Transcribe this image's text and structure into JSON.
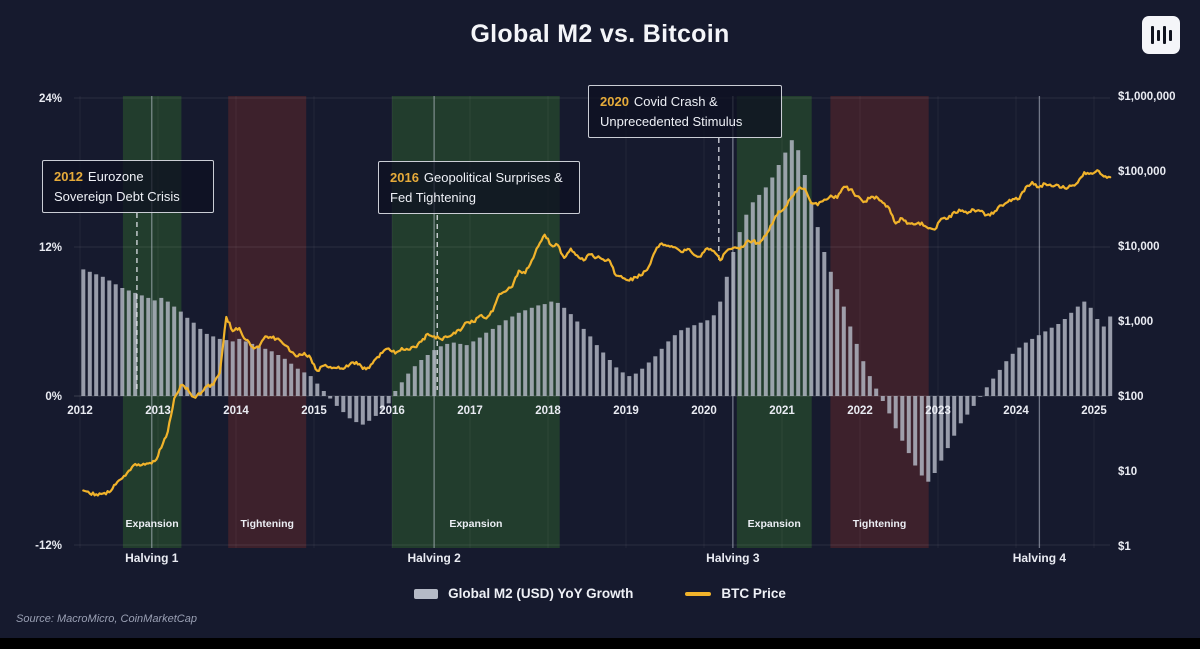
{
  "page": {
    "title": "Global M2 vs. Bitcoin",
    "source": "Source: MacroMicro, CoinMarketCap",
    "logo": "macromicro-bars-icon"
  },
  "colors": {
    "background": "#161a2e",
    "bars": "#b5bac6",
    "btc_line": "#f1b32b",
    "expansion_zone": "#24402e",
    "tightening_zone": "#41222c",
    "accent_year": "#e6ab3a"
  },
  "legend": [
    {
      "label": "Global M2 (USD) YoY Growth",
      "swatch": "bar",
      "color": "#b5bac6"
    },
    {
      "label": "BTC Price",
      "swatch": "line",
      "color": "#f1b32b"
    }
  ],
  "annotations": [
    {
      "year": "2012",
      "text": "Eurozone Sovereign Debt Crisis",
      "date": 2012.73
    },
    {
      "year": "2016",
      "text": "Geopolitical Surprises & Fed Tightening",
      "date": 2016.58
    },
    {
      "year": "2020",
      "text": "Covid Crash & Unprecedented Stimulus",
      "date": 2020.19
    }
  ],
  "chart_data": {
    "type": "combo",
    "title": "Global M2 vs. Bitcoin",
    "x_start": 2012.0,
    "x_step_months": 1,
    "x_axis": {
      "tick_labels": [
        "2012",
        "2013",
        "2014",
        "2015",
        "2016",
        "2017",
        "2018",
        "2019",
        "2020",
        "2021",
        "2022",
        "2023",
        "2024",
        "2025"
      ]
    },
    "left_axis": {
      "range": [
        -12,
        24
      ],
      "ticks": [
        {
          "label": "24%",
          "value": 24
        },
        {
          "label": "12%",
          "value": 12
        },
        {
          "label": "0%",
          "value": 0
        },
        {
          "label": "-12%",
          "value": -12
        }
      ]
    },
    "right_axis": {
      "scale": "log",
      "range": [
        1,
        1000000
      ],
      "ticks": [
        {
          "label": "$1,000,000",
          "value": 1000000
        },
        {
          "label": "$100,000",
          "value": 100000
        },
        {
          "label": "$10,000",
          "value": 10000
        },
        {
          "label": "$1,000",
          "value": 1000
        },
        {
          "label": "$100",
          "value": 100
        },
        {
          "label": "$10",
          "value": 10
        },
        {
          "label": "$1",
          "value": 1
        }
      ]
    },
    "series": [
      {
        "name": "Global M2 (USD) YoY Growth",
        "type": "bar",
        "axis": "left",
        "unit": "%",
        "values": [
          10.2,
          10.0,
          9.8,
          9.6,
          9.3,
          9.0,
          8.7,
          8.5,
          8.3,
          8.1,
          7.9,
          7.7,
          7.9,
          7.6,
          7.2,
          6.8,
          6.3,
          5.9,
          5.4,
          5.0,
          4.8,
          4.6,
          4.5,
          4.4,
          4.6,
          4.4,
          4.2,
          4.0,
          3.8,
          3.6,
          3.3,
          3.0,
          2.6,
          2.2,
          1.9,
          1.6,
          1.0,
          0.4,
          -0.2,
          -0.8,
          -1.3,
          -1.8,
          -2.1,
          -2.3,
          -2.0,
          -1.6,
          -1.1,
          -0.6,
          0.4,
          1.1,
          1.8,
          2.4,
          2.9,
          3.3,
          3.7,
          4.0,
          4.2,
          4.3,
          4.2,
          4.1,
          4.4,
          4.7,
          5.1,
          5.4,
          5.7,
          6.1,
          6.4,
          6.7,
          6.9,
          7.1,
          7.3,
          7.4,
          7.6,
          7.5,
          7.1,
          6.6,
          6.0,
          5.4,
          4.8,
          4.1,
          3.5,
          2.9,
          2.3,
          1.9,
          1.6,
          1.8,
          2.2,
          2.7,
          3.2,
          3.8,
          4.4,
          4.9,
          5.3,
          5.5,
          5.7,
          5.9,
          6.1,
          6.5,
          7.6,
          9.6,
          11.6,
          13.2,
          14.6,
          15.6,
          16.2,
          16.8,
          17.6,
          18.6,
          19.6,
          20.6,
          19.8,
          17.8,
          15.6,
          13.6,
          11.6,
          10.0,
          8.6,
          7.2,
          5.6,
          4.2,
          2.8,
          1.6,
          0.6,
          -0.4,
          -1.4,
          -2.6,
          -3.6,
          -4.6,
          -5.6,
          -6.4,
          -6.9,
          -6.2,
          -5.2,
          -4.2,
          -3.2,
          -2.2,
          -1.5,
          -0.8,
          0.0,
          0.7,
          1.4,
          2.1,
          2.8,
          3.4,
          3.9,
          4.3,
          4.6,
          4.9,
          5.2,
          5.5,
          5.8,
          6.2,
          6.7,
          7.2,
          7.6,
          7.1,
          6.2,
          5.6,
          6.4
        ]
      },
      {
        "name": "BTC Price",
        "type": "line",
        "axis": "right",
        "unit": "USD",
        "values": [
          5.5,
          5.0,
          4.9,
          5.0,
          5.2,
          6.6,
          8.0,
          10.1,
          12.4,
          12.0,
          12.6,
          13.5,
          20.4,
          33.4,
          93,
          139,
          128,
          97,
          106,
          135,
          141,
          204,
          1130,
          732,
          806,
          562,
          454,
          447,
          623,
          597,
          583,
          477,
          387,
          338,
          376,
          320,
          217,
          254,
          244,
          236,
          230,
          263,
          284,
          230,
          236,
          314,
          377,
          430,
          369,
          437,
          416,
          449,
          531,
          673,
          625,
          574,
          610,
          701,
          742,
          964,
          970,
          1180,
          1080,
          1350,
          2290,
          2480,
          2870,
          4700,
          4340,
          6470,
          9920,
          14160,
          10220,
          10310,
          6940,
          9240,
          7500,
          6400,
          7730,
          7030,
          6620,
          6320,
          4020,
          3740,
          3460,
          3850,
          4100,
          5320,
          8560,
          10820,
          10080,
          9630,
          8310,
          9160,
          7560,
          7190,
          9350,
          8560,
          6440,
          8620,
          9450,
          9140,
          11350,
          11650,
          10780,
          13800,
          19700,
          29000,
          33110,
          45240,
          58800,
          57750,
          37330,
          35040,
          41500,
          47160,
          43790,
          61320,
          57010,
          46220,
          38480,
          43190,
          45540,
          37650,
          31790,
          19940,
          23290,
          20050,
          19430,
          20500,
          17160,
          16550,
          23130,
          23140,
          28480,
          29250,
          27220,
          30480,
          29230,
          25930,
          26960,
          34650,
          37710,
          42260,
          42580,
          61150,
          71330,
          60640,
          67490,
          62680,
          64620,
          58970,
          63330,
          70220,
          96450,
          93430,
          102430,
          84350,
          82550
        ]
      }
    ],
    "zones": [
      {
        "label": "Expansion",
        "type": "expansion",
        "start": 2012.55,
        "end": 2013.3
      },
      {
        "label": "Tightening",
        "type": "tightening",
        "start": 2013.9,
        "end": 2014.9
      },
      {
        "label": "Expansion",
        "type": "expansion",
        "start": 2016.0,
        "end": 2018.15
      },
      {
        "label": "Expansion",
        "type": "expansion",
        "start": 2020.42,
        "end": 2021.38
      },
      {
        "label": "Tightening",
        "type": "tightening",
        "start": 2021.62,
        "end": 2022.88
      }
    ],
    "halvings": [
      {
        "label": "Halving 1",
        "date": 2012.92
      },
      {
        "label": "Halving 2",
        "date": 2016.54
      },
      {
        "label": "Halving 3",
        "date": 2020.37
      },
      {
        "label": "Halving 4",
        "date": 2024.3
      }
    ]
  }
}
